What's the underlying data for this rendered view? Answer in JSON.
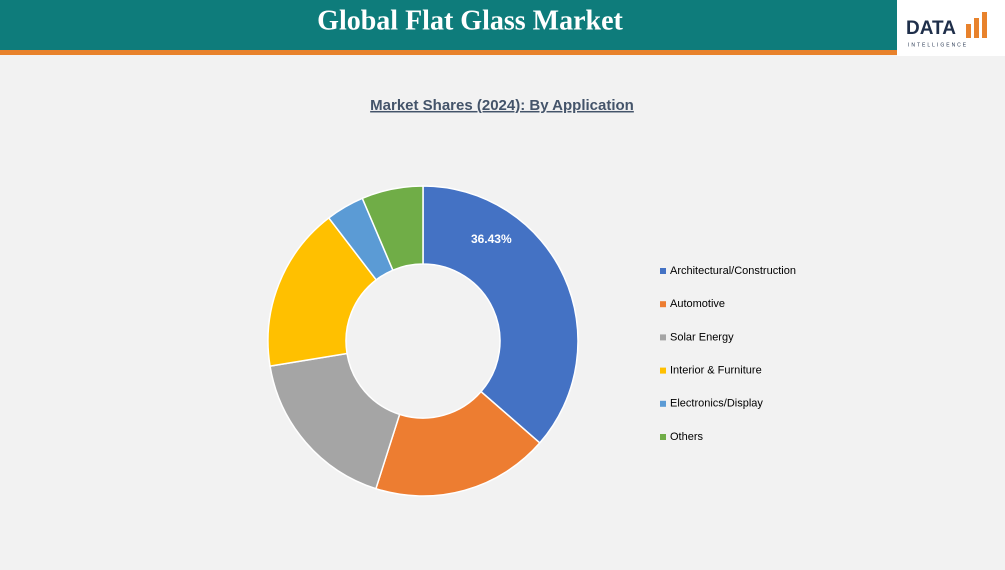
{
  "header": {
    "title": "Global Flat Glass Market",
    "logo": {
      "word": "DATA",
      "tagline": "INTELLIGENCE"
    }
  },
  "chart_data": {
    "type": "donut",
    "title": "Market Shares (2024): By Application",
    "categories": [
      "Architectural/Construction",
      "Automotive",
      "Solar Energy",
      "Interior & Furniture",
      "Electronics/Display",
      "Others"
    ],
    "values": [
      36.43,
      18.5,
      17.5,
      17.2,
      4.0,
      6.4
    ],
    "value_labels": [
      "36.43%",
      null,
      null,
      null,
      null,
      null
    ],
    "colors": [
      "#4472c4",
      "#ed7d31",
      "#a5a5a5",
      "#ffc000",
      "#5b9bd5",
      "#70ad47"
    ],
    "legend": "right"
  }
}
